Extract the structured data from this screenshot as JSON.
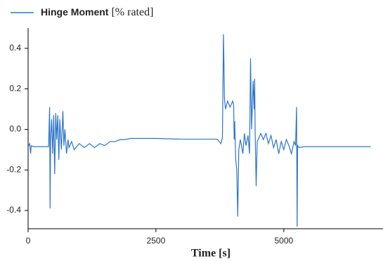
{
  "chart_data": {
    "type": "line",
    "series": [
      {
        "name": "Hinge Moment",
        "color": "#2e75c9",
        "x": [
          0,
          30,
          50,
          60,
          100,
          400,
          420,
          430,
          440,
          460,
          480,
          500,
          520,
          540,
          560,
          580,
          600,
          620,
          650,
          680,
          700,
          720,
          750,
          780,
          800,
          850,
          900,
          1000,
          1100,
          1200,
          1300,
          1400,
          1500,
          1600,
          1700,
          1800,
          1900,
          2000,
          2500,
          3000,
          3500,
          3700,
          3770,
          3800,
          3820,
          3830,
          3840,
          3860,
          3900,
          3950,
          4000,
          4020,
          4030,
          4040,
          4060,
          4080,
          4100,
          4120,
          4150,
          4200,
          4230,
          4260,
          4300,
          4330,
          4350,
          4370,
          4400,
          4420,
          4430,
          4440,
          4460,
          4480,
          4500,
          4550,
          4600,
          4650,
          4700,
          4750,
          4800,
          4850,
          4900,
          4950,
          5000,
          5050,
          5100,
          5150,
          5200,
          5230,
          5250,
          5260,
          5270,
          5300,
          5400,
          6700
        ],
        "values": [
          -0.085,
          -0.07,
          -0.12,
          -0.08,
          -0.085,
          -0.085,
          0.11,
          -0.39,
          -0.05,
          0.05,
          -0.12,
          0.07,
          -0.22,
          0.08,
          -0.05,
          0.07,
          -0.15,
          0.05,
          -0.1,
          0.09,
          -0.08,
          0.0,
          -0.12,
          -0.05,
          -0.09,
          -0.06,
          -0.1,
          -0.07,
          -0.09,
          -0.07,
          -0.09,
          -0.07,
          -0.08,
          -0.06,
          -0.06,
          -0.05,
          -0.05,
          -0.045,
          -0.045,
          -0.048,
          -0.048,
          -0.048,
          -0.07,
          -0.04,
          0.47,
          0.32,
          0.15,
          0.1,
          0.14,
          0.11,
          0.14,
          0.12,
          -0.05,
          0.04,
          -0.15,
          -0.2,
          -0.43,
          -0.1,
          -0.05,
          -0.12,
          -0.02,
          -0.08,
          -0.03,
          -0.12,
          0.35,
          0.0,
          0.24,
          0.1,
          0.25,
          -0.02,
          -0.28,
          -0.06,
          -0.05,
          -0.02,
          -0.05,
          -0.02,
          -0.07,
          -0.03,
          -0.09,
          -0.05,
          -0.12,
          -0.06,
          -0.1,
          -0.05,
          -0.08,
          -0.12,
          -0.06,
          -0.08,
          0.11,
          -0.48,
          -0.08,
          -0.09,
          -0.085,
          -0.085
        ]
      }
    ],
    "legend_unit": "[% rated]",
    "xlabel": "Time [s]",
    "xlim": [
      0,
      6940
    ],
    "xticks": [
      0,
      2500,
      5000
    ],
    "ylim": [
      -0.49,
      0.5
    ],
    "yticks": [
      -0.4,
      -0.2,
      {
        "value": 0,
        "label": "0.0"
      },
      0.2,
      0.4
    ]
  }
}
